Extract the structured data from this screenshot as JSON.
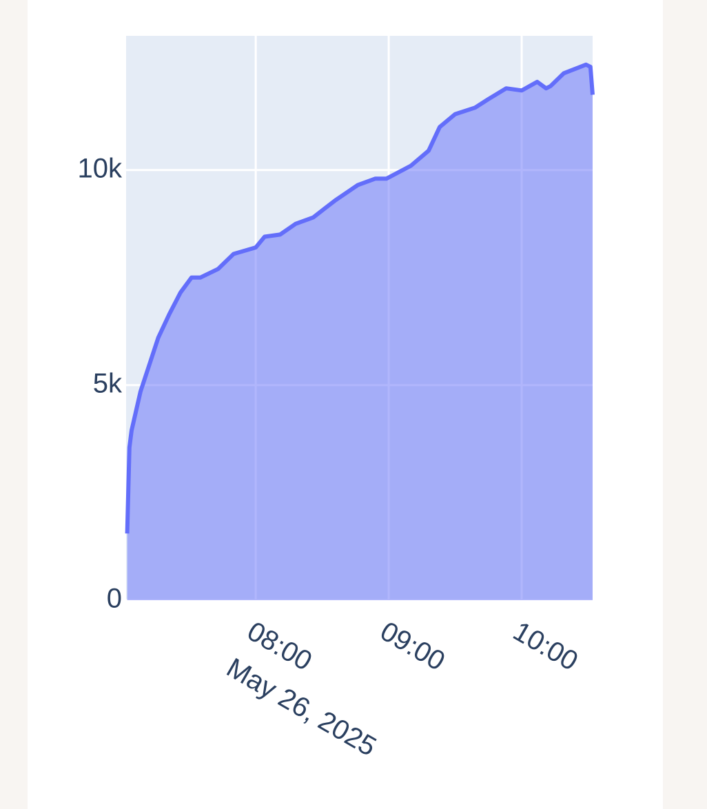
{
  "chart_data": {
    "type": "area",
    "x": [
      "2025-05-26 07:02",
      "2025-05-26 07:03",
      "2025-05-26 07:04",
      "2025-05-26 07:08",
      "2025-05-26 07:16",
      "2025-05-26 07:21",
      "2025-05-26 07:26",
      "2025-05-26 07:31",
      "2025-05-26 07:35",
      "2025-05-26 07:43",
      "2025-05-26 07:50",
      "2025-05-26 08:00",
      "2025-05-26 08:04",
      "2025-05-26 08:11",
      "2025-05-26 08:18",
      "2025-05-26 08:26",
      "2025-05-26 08:31",
      "2025-05-26 08:36",
      "2025-05-26 08:46",
      "2025-05-26 08:54",
      "2025-05-26 08:59",
      "2025-05-26 09:10",
      "2025-05-26 09:18",
      "2025-05-26 09:23",
      "2025-05-26 09:30",
      "2025-05-26 09:39",
      "2025-05-26 09:45",
      "2025-05-26 09:53",
      "2025-05-26 10:00",
      "2025-05-26 10:07",
      "2025-05-26 10:11",
      "2025-05-26 10:13",
      "2025-05-26 10:19",
      "2025-05-26 10:29",
      "2025-05-26 10:31",
      "2025-05-26 10:32"
    ],
    "values": [
      1550,
      3550,
      3950,
      4850,
      6100,
      6650,
      7150,
      7500,
      7500,
      7700,
      8050,
      8200,
      8450,
      8500,
      8750,
      8900,
      9100,
      9300,
      9650,
      9800,
      9800,
      10100,
      10450,
      11000,
      11300,
      11450,
      11650,
      11900,
      11850,
      12050,
      11900,
      11950,
      12250,
      12450,
      12400,
      11750
    ],
    "color": "#636efa",
    "xlim": [
      "2025-05-26 07:01:30",
      "2025-05-26 10:32"
    ],
    "xticks": [
      {
        "value": "2025-05-26 08:00",
        "label": "08:00"
      },
      {
        "value": "2025-05-26 09:00",
        "label": "09:00"
      },
      {
        "value": "2025-05-26 10:00",
        "label": "10:00"
      }
    ],
    "x_date_label": "May 26, 2025",
    "ylim": [
      0,
      13120
    ],
    "yticks": [
      0,
      {
        "value": 5000,
        "label": "5k"
      },
      {
        "value": 10000,
        "label": "10k"
      }
    ],
    "grid": true
  }
}
